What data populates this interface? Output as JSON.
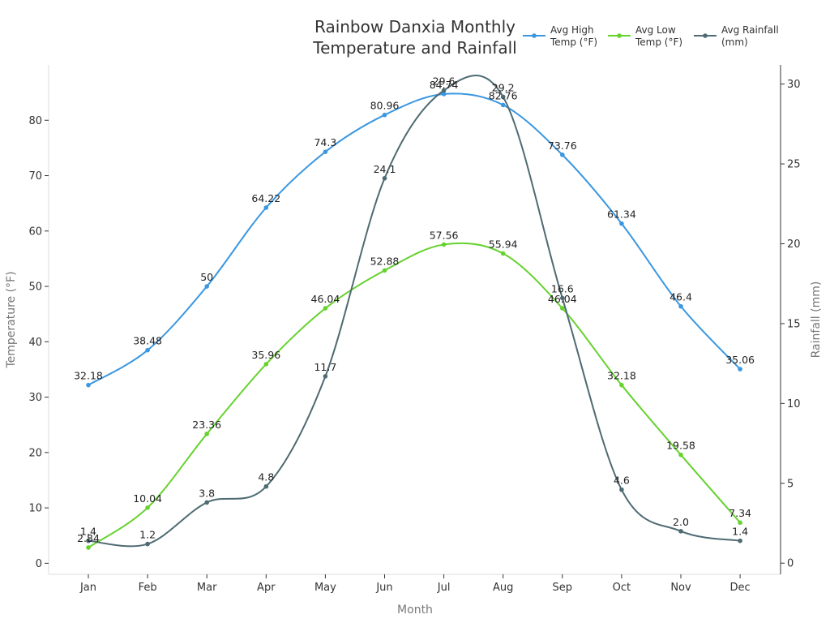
{
  "chart_data": {
    "type": "line",
    "title_lines": [
      "Rainbow Danxia Monthly",
      "Temperature and Rainfall"
    ],
    "xlabel": "Month",
    "ylabel_left": "Temperature (°F)",
    "ylabel_right": "Rainfall (mm)",
    "categories": [
      "Jan",
      "Feb",
      "Mar",
      "Apr",
      "May",
      "Jun",
      "Jul",
      "Aug",
      "Sep",
      "Oct",
      "Nov",
      "Dec"
    ],
    "ylim_left": [
      -2,
      90
    ],
    "yticks_left": [
      0,
      10,
      20,
      30,
      40,
      50,
      60,
      70,
      80
    ],
    "ylim_right": [
      -0.7,
      31.2
    ],
    "yticks_right": [
      0,
      5,
      10,
      15,
      20,
      25,
      30
    ],
    "grid": false,
    "legend_position": "top-right",
    "series": [
      {
        "name_lines": [
          "Avg High",
          "Temp (°F)"
        ],
        "axis": "left",
        "color": "#3b97e0",
        "values": [
          32.18,
          38.48,
          50,
          64.22,
          74.3,
          80.96,
          84.74,
          82.76,
          73.76,
          61.34,
          46.4,
          35.06
        ],
        "labels": [
          "32.18",
          "38.48",
          "50",
          "64.22",
          "74.3",
          "80.96",
          "84.74",
          "82.76",
          "73.76",
          "61.34",
          "46.4",
          "35.06"
        ]
      },
      {
        "name_lines": [
          "Avg Low",
          "Temp (°F)"
        ],
        "axis": "left",
        "color": "#66d22e",
        "values": [
          2.84,
          10.04,
          23.36,
          35.96,
          46.04,
          52.88,
          57.56,
          55.94,
          46.04,
          32.18,
          19.58,
          7.34
        ],
        "labels": [
          "2.84",
          "10.04",
          "23.36",
          "35.96",
          "46.04",
          "52.88",
          "57.56",
          "55.94",
          "46.04",
          "32.18",
          "19.58",
          "7.34"
        ]
      },
      {
        "name_lines": [
          "Avg Rainfall",
          "(mm)"
        ],
        "axis": "right",
        "color": "#4e6a72",
        "values": [
          1.4,
          1.2,
          3.8,
          4.8,
          11.7,
          24.1,
          29.6,
          29.2,
          16.6,
          4.6,
          2.0,
          1.4
        ],
        "labels": [
          "1.4",
          "1.2",
          "3.8",
          "4.8",
          "11.7",
          "24.1",
          "29.6",
          "29.2",
          "16.6",
          "4.6",
          "2.0",
          "1.4"
        ]
      }
    ]
  }
}
